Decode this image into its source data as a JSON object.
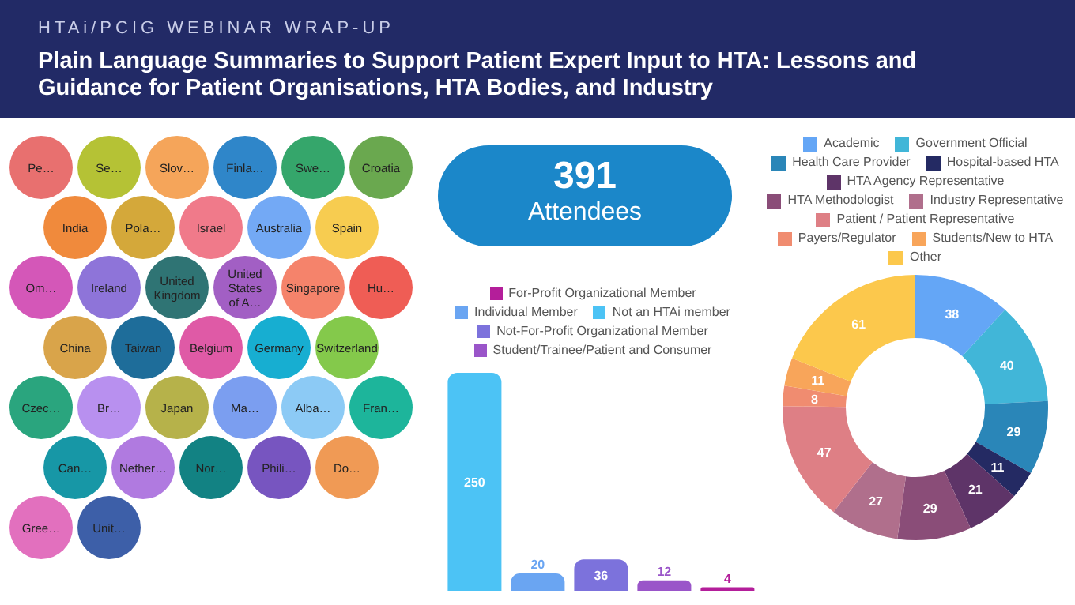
{
  "chart_data": [
    {
      "type": "other",
      "subtitle": "HTAi/PCIG WEBINAR WRAP-UP",
      "title": "Plain Language Summaries to Support Patient Expert Input to HTA: Lessons and Guidance for Patient Organisations, HTA Bodies, and Industry",
      "categories": [
        "Pe…",
        "Se…",
        "Slov…",
        "Finla…",
        "Swe…",
        "Croatia",
        "India",
        "Pola…",
        "Israel",
        "Australia",
        "Spain",
        "Om…",
        "Ireland",
        "United Kingdom",
        "United States of A…",
        "Singapore",
        "Hu…",
        "China",
        "Taiwan",
        "Belgium",
        "Germany",
        "Switzerland",
        "Czec…",
        "Br…",
        "Japan",
        "Ma…",
        "Alba…",
        "Fran…",
        "Can…",
        "Nether…",
        "Nor…",
        "Phili…",
        "Do…",
        "Gree…",
        "Unit…"
      ],
      "colors": [
        "#e8706f",
        "#b5c235",
        "#f5a55a",
        "#2f86c9",
        "#35a66b",
        "#6aa84f",
        "#f08a3c",
        "#d4a83a",
        "#f07a8a",
        "#73a9f5",
        "#f7cc50",
        "#d457b8",
        "#8e74d9",
        "#2f7474",
        "#a25fc4",
        "#f5836b",
        "#ef5d55",
        "#d9a44a",
        "#1e6d9a",
        "#df5aa6",
        "#17aed1",
        "#84c94b",
        "#2aa57e",
        "#b890ef",
        "#b6b24a",
        "#7b9ef0",
        "#8ccaf5",
        "#1db59b",
        "#1797a6",
        "#b07ae0",
        "#128283",
        "#7755c0",
        "#f09a55",
        "#e270be",
        "#3d5fa8"
      ]
    },
    {
      "type": "other",
      "title": "391",
      "subtitle": "Attendees"
    },
    {
      "type": "bar",
      "categories": [
        null,
        null,
        null,
        null,
        null
      ],
      "stacked": true,
      "data_labels": true,
      "tick_labels": false,
      "legend": "top",
      "series": [
        {
          "name": "Not an HTAi member",
          "color": "#4cc3f5",
          "values": [
            250,
            null,
            null,
            null,
            null
          ]
        },
        {
          "name": "Individual Member",
          "color": "#6aa5f2",
          "values": [
            null,
            20,
            null,
            null,
            null
          ]
        },
        {
          "name": "Not-For-Profit Organizational Member",
          "color": "#7c72dc",
          "values": [
            null,
            null,
            36,
            null,
            null
          ]
        },
        {
          "name": "Student/Trainee/Patient and Consumer",
          "color": "#9a55c9",
          "values": [
            null,
            null,
            null,
            12,
            null
          ]
        },
        {
          "name": "For-Profit Organizational Member",
          "color": "#b41e9a",
          "values": [
            null,
            null,
            null,
            null,
            4
          ]
        }
      ]
    },
    {
      "type": "donut",
      "data_labels": true,
      "legend": "top",
      "categories": [
        "Academic",
        "Government Official",
        "Health Care Provider",
        "Hospital-based HTA",
        "HTA Agency Representative",
        "HTA Methodologist",
        "Industry Representative",
        "Patient / Patient Representative",
        "Payers/Regulator",
        "Students/New to HTA",
        "Other"
      ],
      "values": [
        38,
        40,
        29,
        11,
        21,
        29,
        27,
        47,
        8,
        11,
        61
      ],
      "colors": [
        "#64a6f6",
        "#41b6d8",
        "#2a86b8",
        "#242a63",
        "#5e3468",
        "#8a4d78",
        "#b06f8c",
        "#de7f85",
        "#f08c70",
        "#f8a55a",
        "#fcc84c"
      ]
    }
  ]
}
